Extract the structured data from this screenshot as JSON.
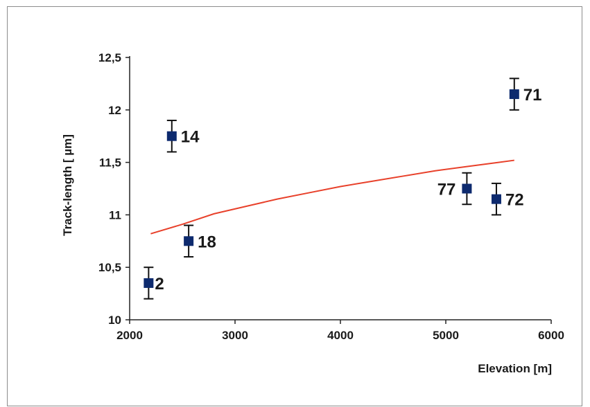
{
  "chart_data": {
    "type": "scatter",
    "xlabel": "Elevation [m]",
    "ylabel": "Track-length [ µm]",
    "xlim": [
      2000,
      6000
    ],
    "ylim": [
      10,
      12.5
    ],
    "x_ticks": [
      2000,
      3000,
      4000,
      5000,
      6000
    ],
    "x_tick_labels": [
      "2000",
      "3000",
      "4000",
      "5000",
      "6000"
    ],
    "y_ticks": [
      10,
      10.5,
      11,
      11.5,
      12,
      12.5
    ],
    "y_tick_labels": [
      "10",
      "10,5",
      "11",
      "11,5",
      "12",
      "12,5"
    ],
    "grid": false,
    "marker_color": "#0d2a6e",
    "errorbar_color": "#111111",
    "trend_color": "#e8402a",
    "points": [
      {
        "label": "2",
        "x": 2180,
        "y": 10.35,
        "err": 0.15,
        "label_side": "right"
      },
      {
        "label": "14",
        "x": 2400,
        "y": 11.75,
        "err": 0.15,
        "label_side": "right"
      },
      {
        "label": "18",
        "x": 2560,
        "y": 10.75,
        "err": 0.15,
        "label_side": "right"
      },
      {
        "label": "77",
        "x": 5200,
        "y": 11.25,
        "err": 0.15,
        "label_side": "left"
      },
      {
        "label": "72",
        "x": 5480,
        "y": 11.15,
        "err": 0.15,
        "label_side": "right"
      },
      {
        "label": "71",
        "x": 5650,
        "y": 12.15,
        "err": 0.15,
        "label_side": "right"
      }
    ],
    "trend_line": {
      "x": [
        2200,
        2500,
        2800,
        3100,
        3400,
        3700,
        4000,
        4300,
        4600,
        4900,
        5200,
        5500,
        5650
      ],
      "y": [
        10.82,
        10.91,
        11.01,
        11.08,
        11.15,
        11.21,
        11.27,
        11.32,
        11.37,
        11.42,
        11.46,
        11.5,
        11.52
      ]
    }
  }
}
